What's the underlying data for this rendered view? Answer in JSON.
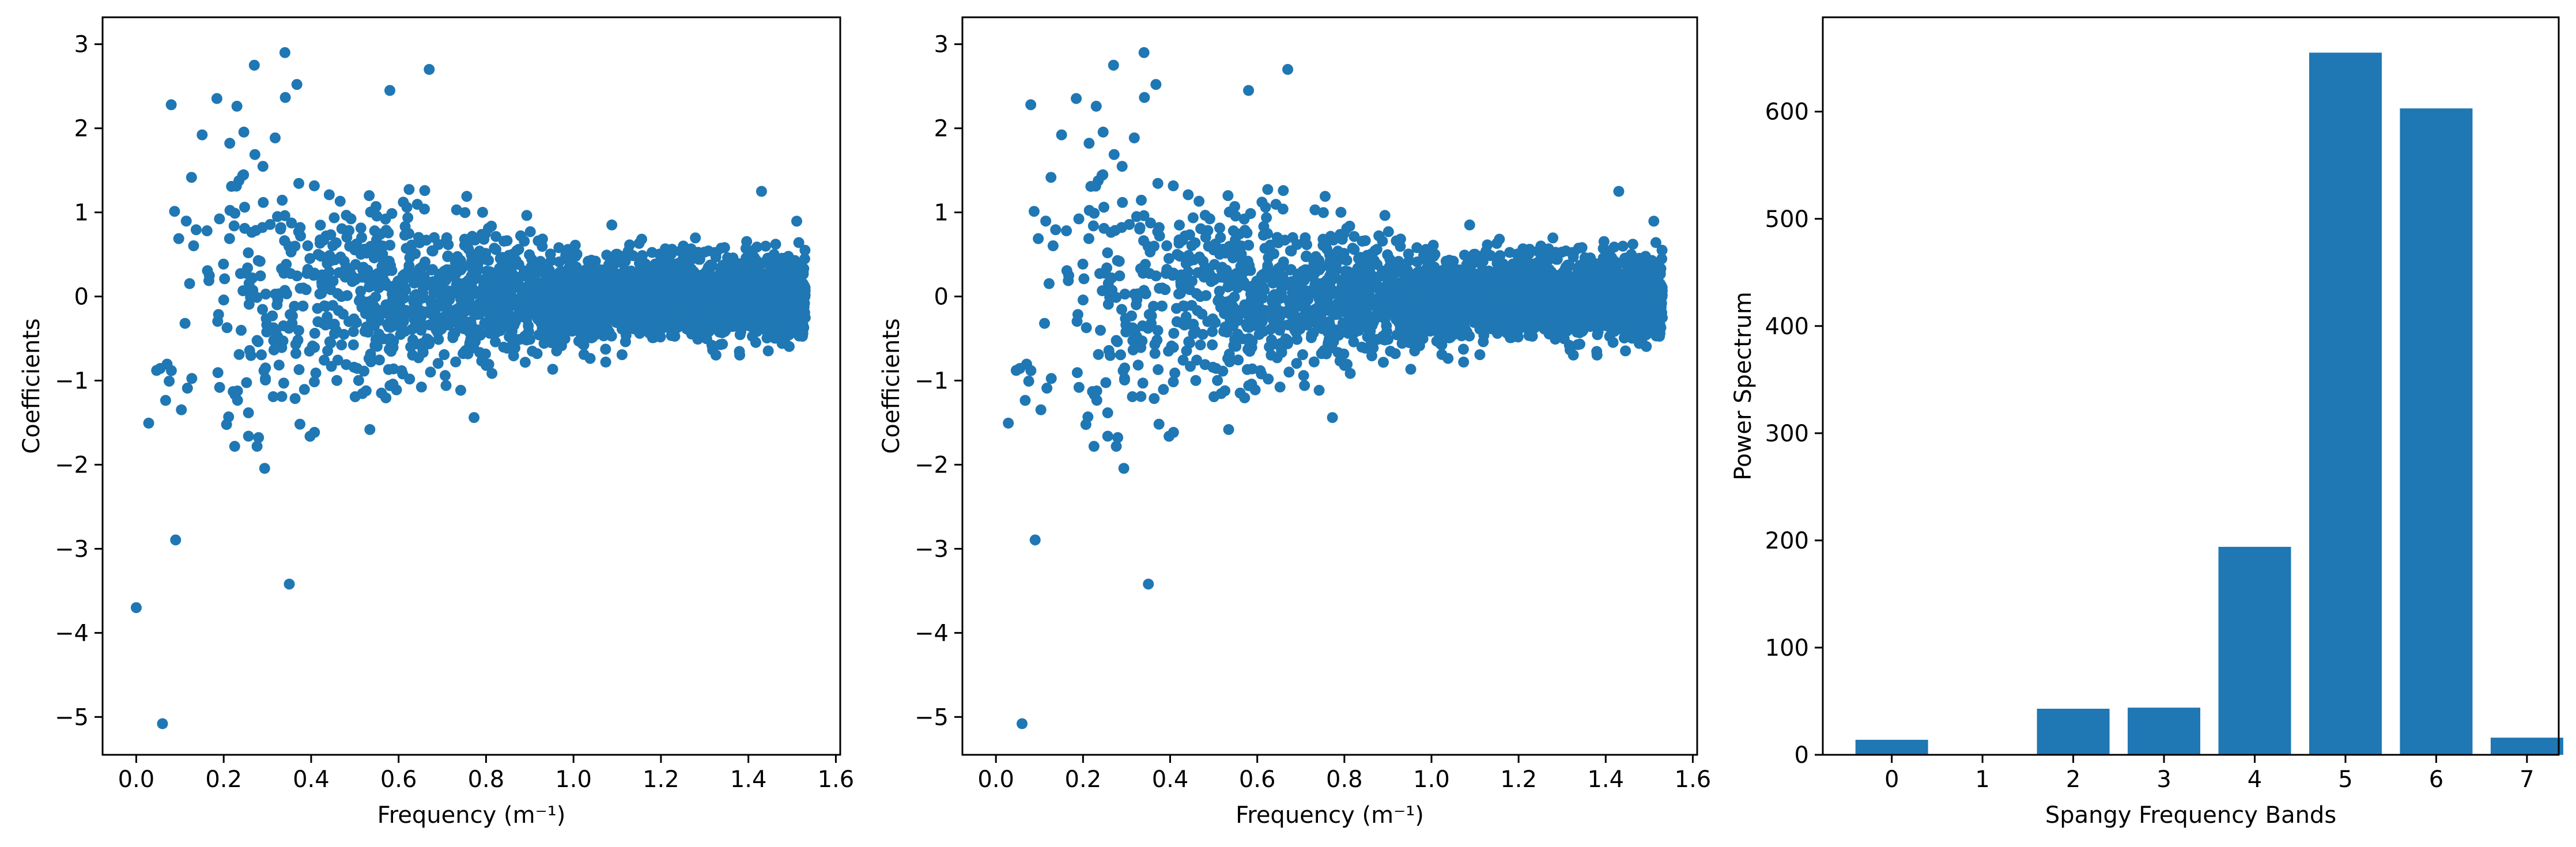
{
  "chart_data": [
    {
      "type": "scatter",
      "xlabel": "Frequency (m⁻¹)",
      "ylabel": "Coefficients",
      "xlim": [
        -0.077,
        1.61
      ],
      "ylim": [
        -5.45,
        3.32
      ],
      "xticks": [
        0.0,
        0.2,
        0.4,
        0.6,
        0.8,
        1.0,
        1.2,
        1.4,
        1.6
      ],
      "xtick_labels": [
        "0.0",
        "0.2",
        "0.4",
        "0.6",
        "0.8",
        "1.0",
        "1.2",
        "1.4",
        "1.6"
      ],
      "yticks": [
        -5,
        -4,
        -3,
        -2,
        -1,
        0,
        1,
        2,
        3
      ],
      "ytick_labels": [
        "−5",
        "−4",
        "−3",
        "−2",
        "−1",
        "0",
        "1",
        "2",
        "3"
      ],
      "color": "#1f77b4",
      "grid": false,
      "x_max": 1.53,
      "seed": 7,
      "notable_points": [
        {
          "x": 0.0,
          "y": -3.7
        },
        {
          "x": 0.06,
          "y": -5.08
        },
        {
          "x": 0.35,
          "y": -3.42
        },
        {
          "x": 0.34,
          "y": 2.9
        },
        {
          "x": 0.27,
          "y": 2.75
        },
        {
          "x": 0.67,
          "y": 2.7
        },
        {
          "x": 0.08,
          "y": 2.28
        },
        {
          "x": 0.58,
          "y": 2.45
        },
        {
          "x": 1.43,
          "y": 1.25
        }
      ]
    },
    {
      "type": "scatter",
      "xlabel": "Frequency (m⁻¹)",
      "ylabel": "Coefficients",
      "xlim": [
        -0.077,
        1.61
      ],
      "ylim": [
        -5.45,
        3.32
      ],
      "xticks": [
        0.0,
        0.2,
        0.4,
        0.6,
        0.8,
        1.0,
        1.2,
        1.4,
        1.6
      ],
      "xtick_labels": [
        "0.0",
        "0.2",
        "0.4",
        "0.6",
        "0.8",
        "1.0",
        "1.2",
        "1.4",
        "1.6"
      ],
      "yticks": [
        -5,
        -4,
        -3,
        -2,
        -1,
        0,
        1,
        2,
        3
      ],
      "ytick_labels": [
        "−5",
        "−4",
        "−3",
        "−2",
        "−1",
        "0",
        "1",
        "2",
        "3"
      ],
      "color": "#1f77b4",
      "grid": false,
      "x_max": 1.53,
      "seed": 7,
      "notable_points": [
        {
          "x": 0.06,
          "y": -5.08
        },
        {
          "x": 0.35,
          "y": -3.42
        },
        {
          "x": 0.34,
          "y": 2.9
        },
        {
          "x": 0.27,
          "y": 2.75
        },
        {
          "x": 0.67,
          "y": 2.7
        },
        {
          "x": 0.08,
          "y": 2.28
        },
        {
          "x": 0.58,
          "y": 2.45
        },
        {
          "x": 1.43,
          "y": 1.25
        }
      ]
    },
    {
      "type": "bar",
      "xlabel": "Spangy Frequency Bands",
      "ylabel": "Power Spectrum",
      "categories": [
        "0",
        "1",
        "2",
        "3",
        "4",
        "5",
        "6",
        "7"
      ],
      "values": [
        14,
        0,
        43,
        44,
        194,
        655,
        603,
        16
      ],
      "xlim": [
        -0.76,
        7.35
      ],
      "ylim": [
        0,
        688
      ],
      "yticks": [
        0,
        100,
        200,
        300,
        400,
        500,
        600
      ],
      "ytick_labels": [
        "0",
        "100",
        "200",
        "300",
        "400",
        "500",
        "600"
      ],
      "color": "#1f77b4",
      "grid": false
    }
  ]
}
